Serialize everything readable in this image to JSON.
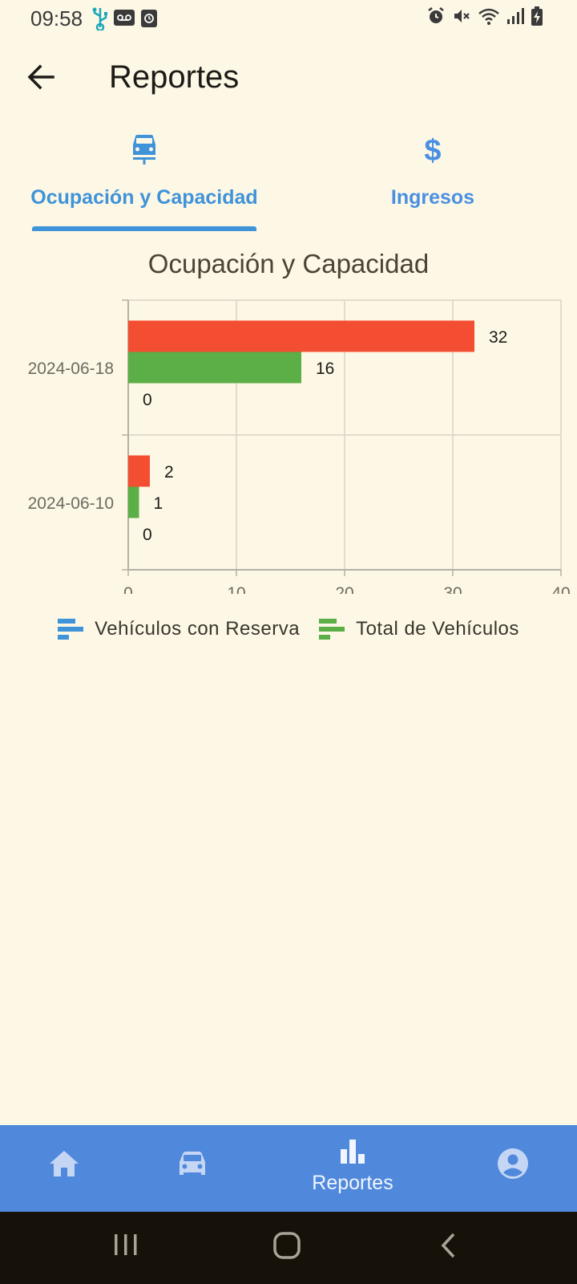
{
  "status_bar": {
    "time": "09:58",
    "left_icons": [
      "usb-icon",
      "voicemail-icon",
      "screen-record-icon"
    ],
    "right_icons": [
      "alarm-icon",
      "mute-icon",
      "wifi-icon",
      "signal-icon",
      "battery-charging-icon"
    ]
  },
  "app_bar": {
    "title": "Reportes",
    "back_icon": "arrow-back-icon"
  },
  "tabs": [
    {
      "label": "Ocupación y Capacidad",
      "icon": "car-icon",
      "selected": true
    },
    {
      "label": "Ingresos",
      "icon": "dollar-icon",
      "selected": false
    }
  ],
  "colors": {
    "background": "#FDF7E6",
    "accent": "#3f93d8",
    "series_reserva": "#f44e32",
    "series_total": "#5cae46",
    "bottom_nav": "#5089dc"
  },
  "chart_data": {
    "type": "bar",
    "orientation": "horizontal",
    "title": "Ocupación y Capacidad",
    "categories": [
      "2024-06-18",
      "2024-06-10"
    ],
    "series": [
      {
        "values": [
          32,
          2
        ],
        "color": "#f44e32"
      },
      {
        "values": [
          16,
          1
        ],
        "color": "#5cae46"
      },
      {
        "values": [
          0,
          0
        ],
        "color": "#3f93d8"
      }
    ],
    "xlim": [
      0,
      40
    ],
    "x_ticks": [
      0,
      10,
      20,
      30,
      40
    ],
    "grid": true
  },
  "legend": [
    {
      "label": "Vehículos con Reserva",
      "color": "#3f93d8"
    },
    {
      "label": "Total de Vehículos",
      "color": "#5cae46"
    }
  ],
  "bottom_nav": {
    "items": [
      {
        "icon": "home-icon",
        "label": ""
      },
      {
        "icon": "car-icon",
        "label": ""
      },
      {
        "icon": "bar-chart-icon",
        "label": "Reportes",
        "selected": true
      },
      {
        "icon": "account-circle-icon",
        "label": ""
      }
    ]
  },
  "system_nav": [
    "recent-apps-icon",
    "home-circle-icon",
    "back-chevron-icon"
  ]
}
